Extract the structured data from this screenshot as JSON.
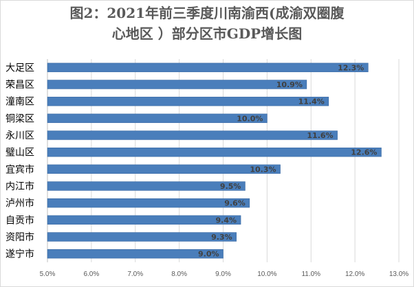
{
  "chart_data": {
    "type": "bar",
    "orientation": "horizontal",
    "title_line1": "图2：2021年前三季度川南渝西(成渝双圈腹",
    "title_line2": "心地区 ）部分区市GDP增长图",
    "categories": [
      "大足区",
      "荣昌区",
      "潼南区",
      "铜梁区",
      "永川区",
      "璧山区",
      "宜宾市",
      "内江市",
      "泸州市",
      "自贡市",
      "资阳市",
      "遂宁市"
    ],
    "values": [
      12.3,
      10.9,
      11.4,
      10.0,
      11.6,
      12.6,
      10.3,
      9.5,
      9.6,
      9.4,
      9.3,
      9.0
    ],
    "data_labels": [
      "12.3%",
      "10.9%",
      "11.4%",
      "10.0%",
      "11.6%",
      "12.6%",
      "10.3%",
      "9.5%",
      "9.6%",
      "9.4%",
      "9.3%",
      "9.0%"
    ],
    "xlim": [
      5.0,
      13.0
    ],
    "x_ticks": [
      5.0,
      6.0,
      7.0,
      8.0,
      9.0,
      10.0,
      11.0,
      12.0,
      13.0
    ],
    "x_tick_labels": [
      "5.0%",
      "6.0%",
      "7.0%",
      "8.0%",
      "9.0%",
      "10.0%",
      "11.0%",
      "12.0%",
      "13.0%"
    ],
    "xlabel": "",
    "ylabel": "",
    "grid": "vertical",
    "legend": "none",
    "bar_color": "#4a7ebb",
    "bar_edge_color": "#3a6aa3",
    "grid_color": "#d9d9d9"
  }
}
